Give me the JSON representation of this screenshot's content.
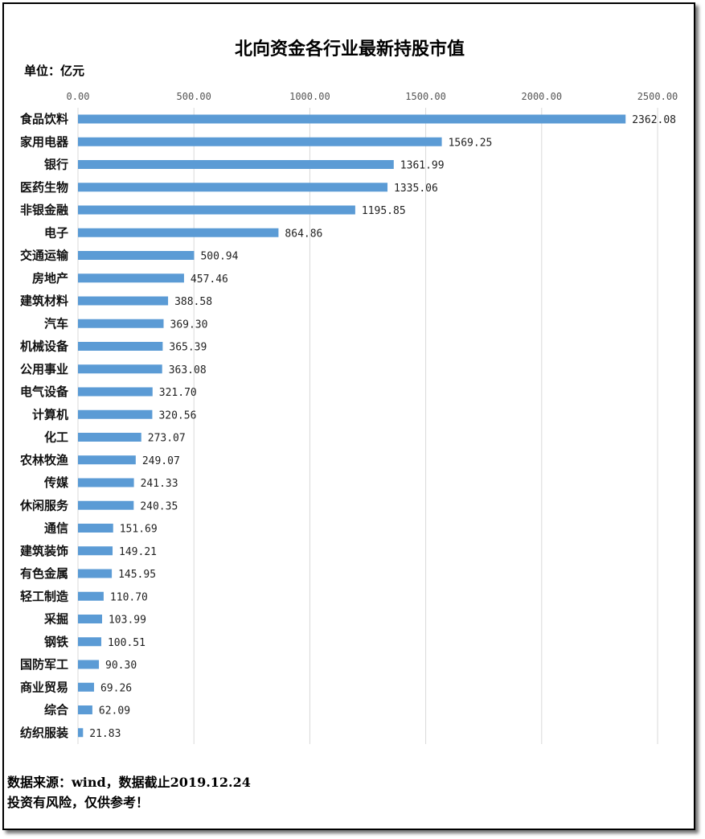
{
  "chart_data": {
    "type": "bar",
    "orientation": "horizontal",
    "title": "北向资金各行业最新持股市值",
    "unit_label": "单位：亿元",
    "categories": [
      "食品饮料",
      "家用电器",
      "银行",
      "医药生物",
      "非银金融",
      "电子",
      "交通运输",
      "房地产",
      "建筑材料",
      "汽车",
      "机械设备",
      "公用事业",
      "电气设备",
      "计算机",
      "化工",
      "农林牧渔",
      "传媒",
      "休闲服务",
      "通信",
      "建筑装饰",
      "有色金属",
      "轻工制造",
      "采掘",
      "钢铁",
      "国防军工",
      "商业贸易",
      "综合",
      "纺织服装"
    ],
    "values": [
      2362.08,
      1569.25,
      1361.99,
      1335.06,
      1195.85,
      864.86,
      500.94,
      457.46,
      388.58,
      369.3,
      365.39,
      363.08,
      321.7,
      320.56,
      273.07,
      249.07,
      241.33,
      240.35,
      151.69,
      149.21,
      145.95,
      110.7,
      103.99,
      100.51,
      90.3,
      69.26,
      62.09,
      21.83
    ],
    "value_labels": [
      "2362.08",
      "1569.25",
      "1361.99",
      "1335.06",
      "1195.85",
      "864.86",
      "500.94",
      "457.46",
      "388.58",
      "369.30",
      "365.39",
      "363.08",
      "321.70",
      "320.56",
      "273.07",
      "249.07",
      "241.33",
      "240.35",
      "151.69",
      "149.21",
      "145.95",
      "110.70",
      "103.99",
      "100.51",
      "90.30",
      "69.26",
      "62.09",
      "21.83"
    ],
    "xlim": [
      0,
      2500
    ],
    "x_ticks": [
      "0.00",
      "500.00",
      "1000.00",
      "1500.00",
      "2000.00",
      "2500.00"
    ],
    "tick_values": [
      0,
      500,
      1000,
      1500,
      2000,
      2500
    ],
    "axis_position": "top",
    "grid": true,
    "bar_color": "#5b9bd5"
  },
  "footer": {
    "source": "数据来源：wind，数据截止2019.12.24",
    "disclaimer": "投资有风险，仅供参考！"
  }
}
